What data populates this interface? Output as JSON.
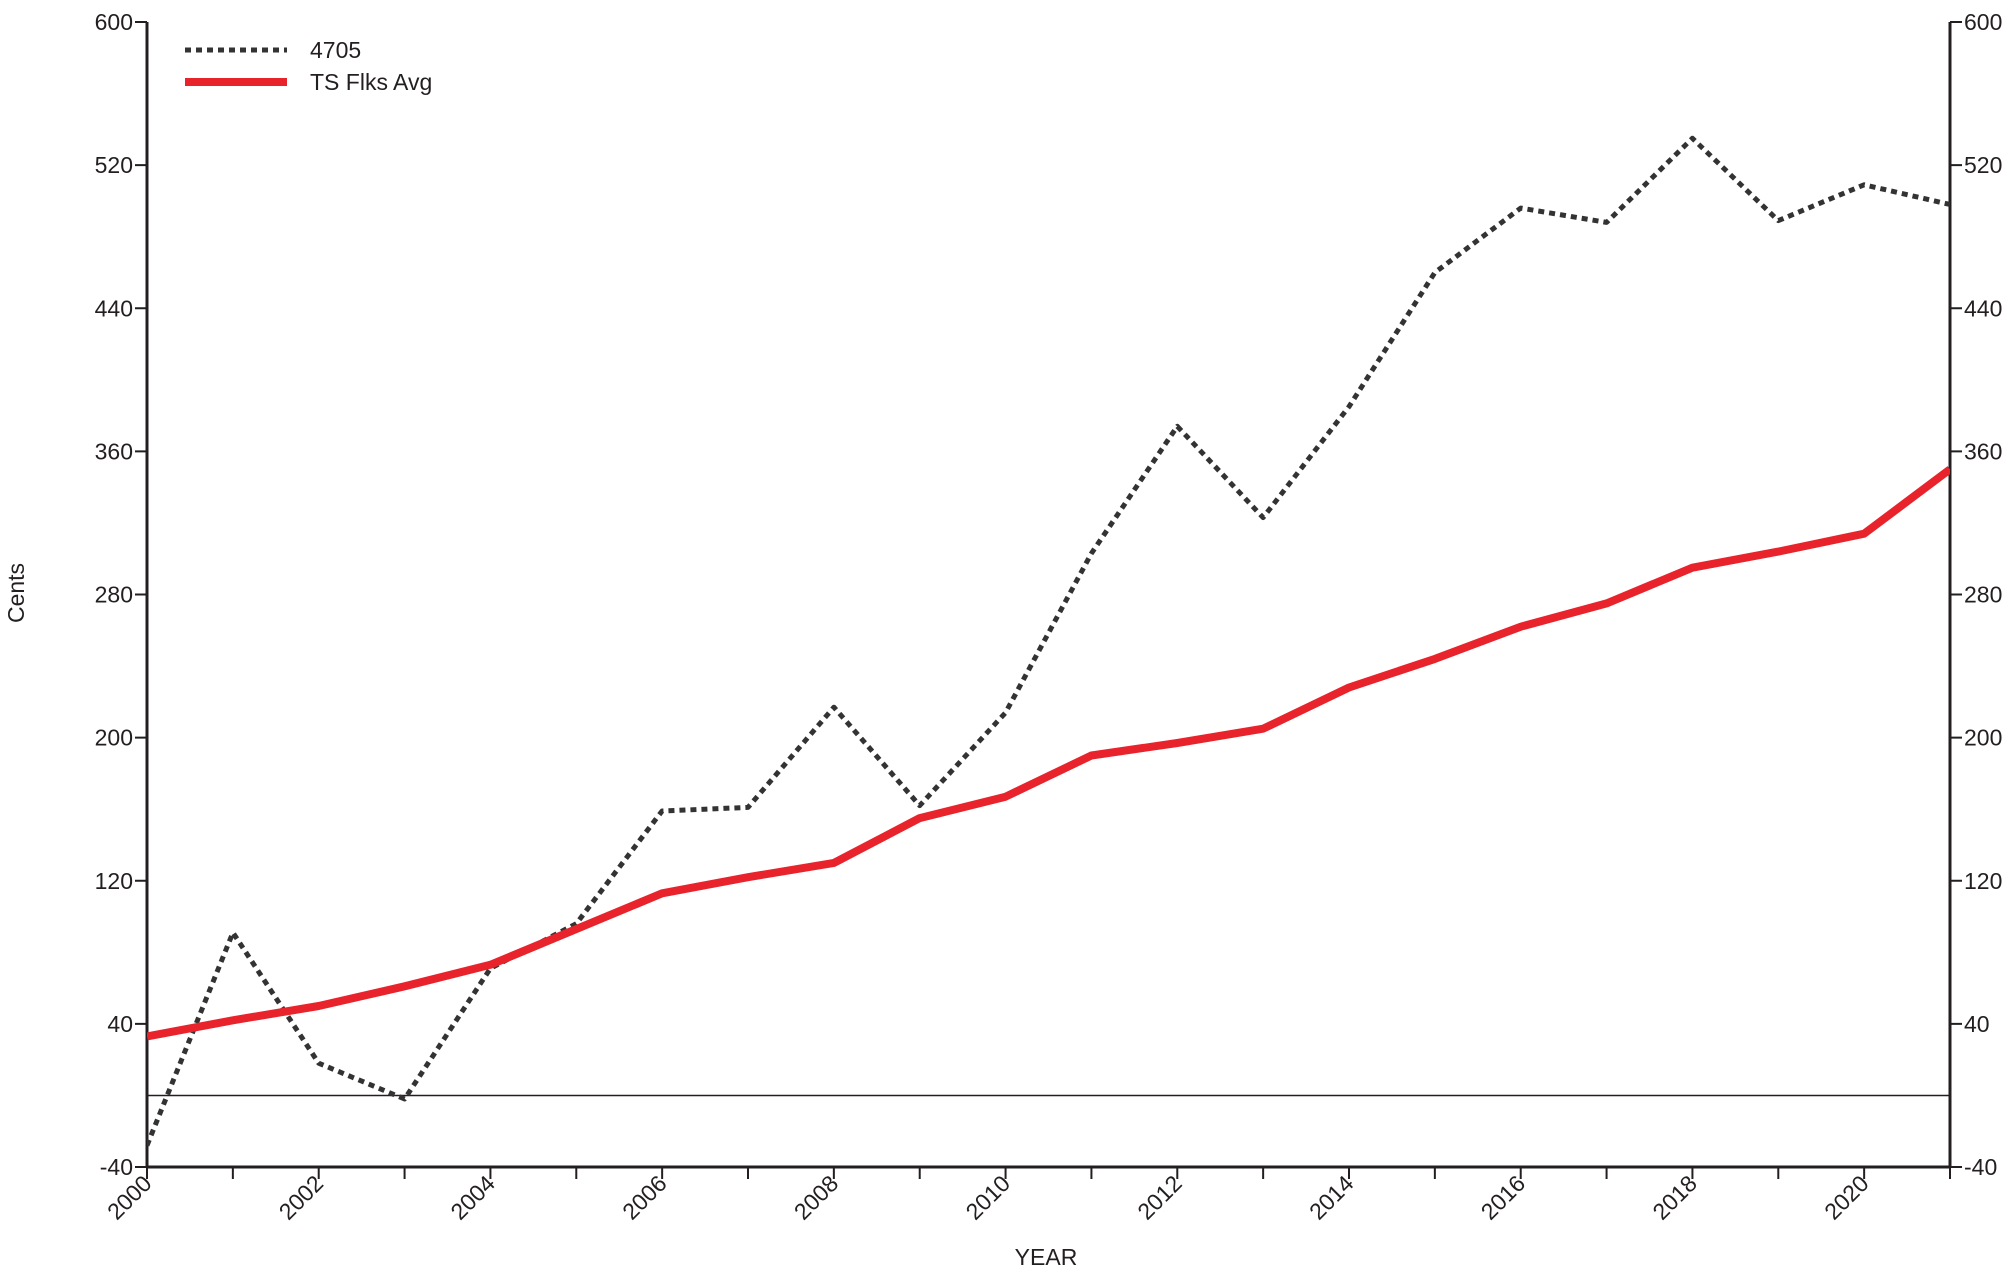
{
  "chart_data": {
    "type": "line",
    "title": "",
    "xlabel": "YEAR",
    "ylabel": "Cents",
    "xlim": [
      2000,
      2021
    ],
    "ylim": [
      -40,
      600
    ],
    "x_tick_labels": [
      "2000",
      "2002",
      "2004",
      "2006",
      "2008",
      "2010",
      "2012",
      "2014",
      "2016",
      "2018",
      "2020"
    ],
    "y_tick_labels": [
      "600",
      "520",
      "440",
      "360",
      "280",
      "200",
      "120",
      "40",
      "-40"
    ],
    "y_ticks": [
      600,
      520,
      440,
      360,
      280,
      200,
      120,
      40,
      -40
    ],
    "x": [
      2000,
      2001,
      2002,
      2003,
      2004,
      2005,
      2006,
      2007,
      2008,
      2009,
      2010,
      2011,
      2012,
      2013,
      2014,
      2015,
      2016,
      2017,
      2018,
      2019,
      2020,
      2021
    ],
    "reference_line_y": 0,
    "legend_position": "top-left",
    "grid": false,
    "series": [
      {
        "name": "4705",
        "style": "dotted",
        "color": "#333333",
        "values": [
          -28,
          91,
          18,
          -2,
          71,
          96,
          159,
          161,
          217,
          162,
          214,
          303,
          374,
          323,
          385,
          460,
          496,
          488,
          535,
          489,
          509,
          498
        ]
      },
      {
        "name": "TS Flks Avg",
        "style": "solid",
        "color": "#e8232b",
        "values": [
          33,
          42,
          50,
          61,
          73,
          93,
          113,
          122,
          130,
          155,
          167,
          190,
          197,
          205,
          228,
          244,
          262,
          275,
          295,
          304,
          314,
          350
        ]
      }
    ]
  }
}
